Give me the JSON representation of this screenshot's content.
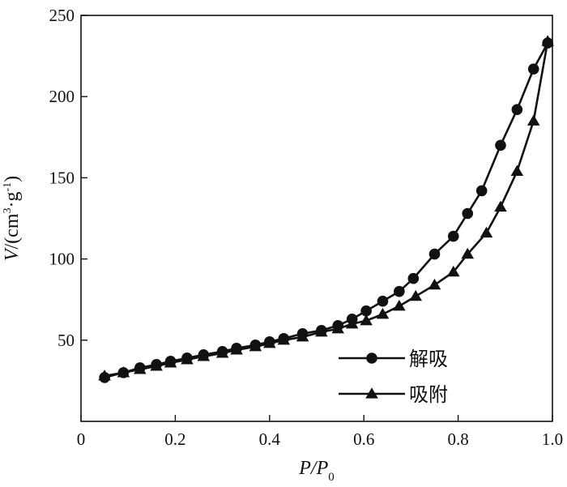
{
  "chart_data": {
    "type": "line",
    "xlabel": {
      "main": "P/P",
      "sub": "0"
    },
    "ylabel": {
      "prefix": "V",
      "rest": "/(cm",
      "sup1": "3",
      "mid": "·g",
      "sup2": "-1",
      "end": ")"
    },
    "xlim": [
      0,
      1.0
    ],
    "ylim": [
      0,
      250
    ],
    "x_ticks": [
      0,
      0.2,
      0.4,
      0.6,
      0.8,
      1.0
    ],
    "x_tick_labels": [
      "0",
      "0.2",
      "0.4",
      "0.6",
      "0.8",
      "1.0"
    ],
    "y_ticks": [
      50,
      100,
      150,
      200,
      250
    ],
    "y_tick_labels": [
      "50",
      "100",
      "150",
      "200",
      "250"
    ],
    "grid": false,
    "legend_position": "bottom-right",
    "series": [
      {
        "name": "解吸",
        "marker": "circle",
        "color": "#111111",
        "x": [
          0.05,
          0.09,
          0.125,
          0.16,
          0.19,
          0.225,
          0.26,
          0.3,
          0.33,
          0.37,
          0.4,
          0.43,
          0.47,
          0.51,
          0.545,
          0.575,
          0.605,
          0.64,
          0.675,
          0.705,
          0.75,
          0.79,
          0.82,
          0.85,
          0.89,
          0.925,
          0.96,
          0.99
        ],
        "y": [
          27,
          30,
          33,
          35,
          37,
          39,
          41,
          43,
          45,
          47,
          49,
          51,
          54,
          56,
          59,
          63,
          68,
          74,
          80,
          88,
          103,
          114,
          128,
          142,
          170,
          192,
          217,
          233
        ]
      },
      {
        "name": "吸附",
        "marker": "triangle",
        "color": "#111111",
        "x": [
          0.05,
          0.09,
          0.125,
          0.16,
          0.19,
          0.225,
          0.26,
          0.3,
          0.33,
          0.37,
          0.4,
          0.43,
          0.47,
          0.51,
          0.545,
          0.575,
          0.605,
          0.64,
          0.675,
          0.71,
          0.75,
          0.79,
          0.82,
          0.86,
          0.89,
          0.925,
          0.96,
          0.99
        ],
        "y": [
          28,
          30,
          32,
          34,
          36,
          38,
          40,
          42,
          44,
          46,
          48,
          50,
          52,
          55,
          57,
          60,
          62,
          66,
          71,
          77,
          84,
          92,
          103,
          116,
          132,
          154,
          185,
          234
        ]
      }
    ]
  }
}
